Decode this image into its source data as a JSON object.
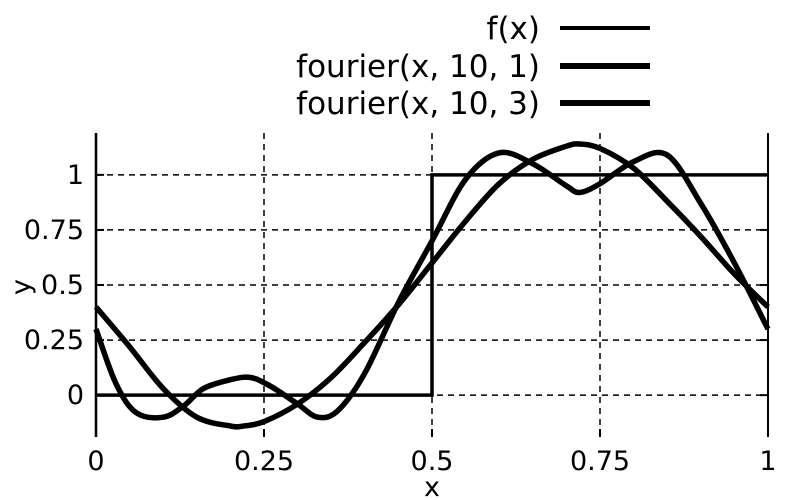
{
  "chart_data": {
    "type": "line",
    "title": "",
    "xlabel": "x",
    "ylabel": "y",
    "xlim": [
      0,
      1
    ],
    "ylim": [
      -0.19,
      1.19
    ],
    "grid": true,
    "grid_style": "dashed",
    "legend_position": "top-right",
    "x_ticks": [
      {
        "value": 0,
        "label": "0"
      },
      {
        "value": 0.25,
        "label": "0.25"
      },
      {
        "value": 0.5,
        "label": "0.5"
      },
      {
        "value": 0.75,
        "label": "0.75"
      },
      {
        "value": 1,
        "label": "1"
      }
    ],
    "y_ticks": [
      {
        "value": 0,
        "label": "0"
      },
      {
        "value": 0.25,
        "label": "0.25"
      },
      {
        "value": 0.5,
        "label": "0.5"
      },
      {
        "value": 0.75,
        "label": "0.75"
      },
      {
        "value": 1,
        "label": "1"
      }
    ],
    "series": [
      {
        "name": "f(x)",
        "color": "#000000",
        "x": [
          0,
          0.5,
          0.5,
          1
        ],
        "y": [
          0,
          0,
          1,
          1
        ]
      },
      {
        "name": "fourier(x, 10, 1)",
        "color": "#000000",
        "x": [
          0,
          0.05,
          0.1,
          0.15,
          0.2,
          0.22,
          0.25,
          0.3,
          0.35,
          0.4,
          0.45,
          0.5,
          0.55,
          0.6,
          0.65,
          0.7,
          0.72,
          0.75,
          0.8,
          0.85,
          0.9,
          0.95,
          1
        ],
        "y": [
          0.4,
          0.22,
          0.03,
          -0.1,
          -0.14,
          -0.14,
          -0.12,
          -0.04,
          0.08,
          0.24,
          0.41,
          0.6,
          0.79,
          0.96,
          1.07,
          1.13,
          1.14,
          1.12,
          1.03,
          0.88,
          0.72,
          0.55,
          0.4
        ]
      },
      {
        "name": "fourier(x, 10, 3)",
        "color": "#000000",
        "x": [
          0,
          0.03,
          0.06,
          0.1,
          0.13,
          0.16,
          0.2,
          0.23,
          0.26,
          0.3,
          0.33,
          0.36,
          0.4,
          0.45,
          0.5,
          0.55,
          0.6,
          0.65,
          0.7,
          0.72,
          0.75,
          0.8,
          0.85,
          0.9,
          0.95,
          1
        ],
        "y": [
          0.3,
          0.05,
          -0.08,
          -0.1,
          -0.05,
          0.03,
          0.07,
          0.08,
          0.04,
          -0.04,
          -0.1,
          -0.07,
          0.1,
          0.42,
          0.7,
          0.98,
          1.1,
          1.05,
          0.95,
          0.92,
          0.96,
          1.06,
          1.09,
          0.87,
          0.6,
          0.3
        ]
      }
    ]
  }
}
